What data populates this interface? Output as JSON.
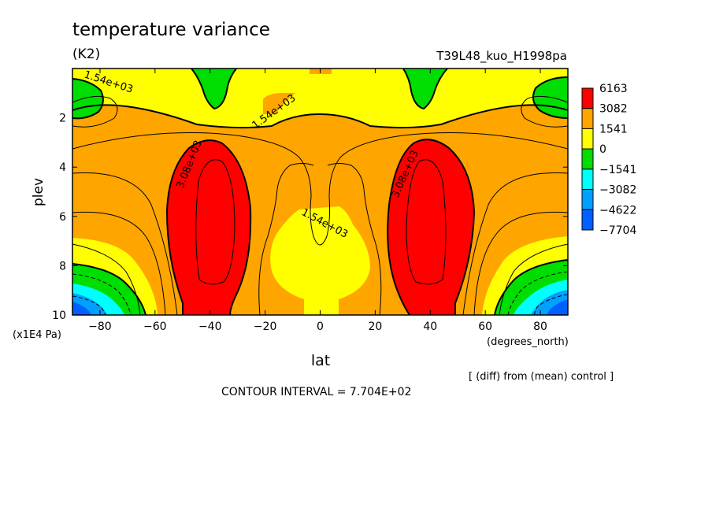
{
  "chart_data": {
    "type": "heatmap",
    "title": "temperature variance",
    "units": "(K2)",
    "experiment": "T39L48_kuo_H1998pa",
    "xlabel": "lat",
    "x_units": "(degrees_north)",
    "ylabel": "plev",
    "y_units": "(x1E4 Pa)",
    "note": "[ (diff) from (mean) control ]",
    "contour_interval": "CONTOUR INTERVAL = 7.704E+02",
    "xlim": [
      -90,
      90
    ],
    "ylim": [
      10,
      0
    ],
    "x_ticks": [
      -80,
      -60,
      -40,
      -20,
      0,
      20,
      40,
      60,
      80
    ],
    "x_tick_labels": [
      "−80",
      "−60",
      "−40",
      "−20",
      "0",
      "20",
      "40",
      "60",
      "80"
    ],
    "y_ticks": [
      2,
      4,
      6,
      8,
      10
    ],
    "y_tick_labels": [
      "2",
      "4",
      "6",
      "8",
      "10"
    ],
    "colorbar": {
      "labels": [
        "6163",
        "3082",
        "1541",
        "0",
        "−1541",
        "−3082",
        "−4622",
        "−7704"
      ],
      "colors": [
        "#ff0000",
        "#ffa500",
        "#ffff00",
        "#00dd00",
        "#00ffff",
        "#00a0ff",
        "#0060ff"
      ]
    },
    "contour_labels": [
      "1.54e+03",
      "1.54e+03",
      "3.08e+03",
      "3.08e+03",
      "1.54e+03"
    ],
    "grid": false
  }
}
